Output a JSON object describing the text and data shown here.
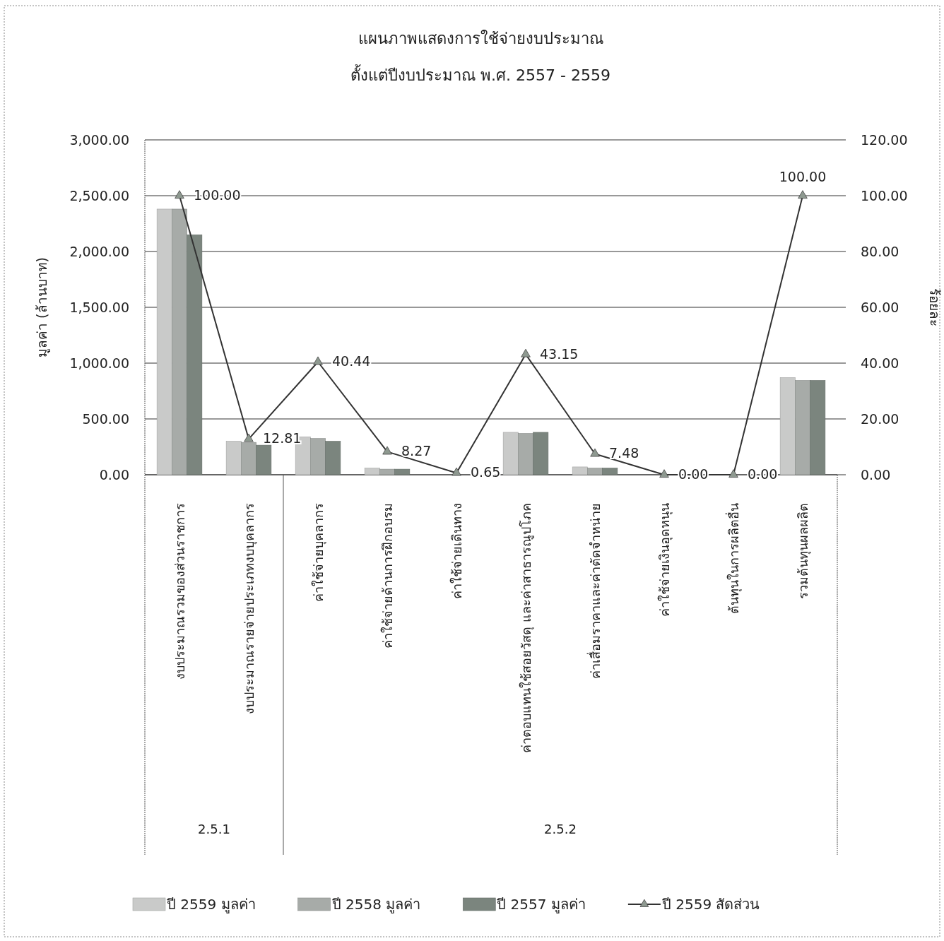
{
  "chart_data": {
    "type": "bar",
    "title": "แผนภาพแสดงการใช้จ่ายงบประมาณ",
    "subtitle": "ตั้งแต่ปีงบประมาณ พ.ศ. 2557 - 2559",
    "ylabel": "มูลค่า (ล้านบาท)",
    "y2label": "ร้อยละ",
    "categories": [
      "งบประมาณรวมของส่วนราชการ",
      "งบประมาณรายจ่ายประเภทงบบุคลากร",
      "ค่าใช้จ่ายบุคลากร",
      "ค่าใช้จ่ายด้านการฝึกอบรม",
      "ค่าใช้จ่ายเดินทาง",
      "ค่าตอบแทนใช้สอยวัสดุ และค่าสาธารณูปโภค",
      "ค่าเสื่อมราคาและค่าตัดจำหน่าย",
      "ค่าใช้จ่ายเงินอุดหนุน",
      "ต้นทุนในการผลิตอื่น",
      "รวมต้นทุนผลผลิต"
    ],
    "series": [
      {
        "name": "ปี 2559 มูลค่า",
        "color": "#c9cac9",
        "values": [
          2380,
          300,
          340,
          60,
          0,
          380,
          70,
          0,
          0,
          870
        ]
      },
      {
        "name": "ปี 2558 มูลค่า",
        "color": "#a7aba8",
        "values": [
          2380,
          290,
          325,
          50,
          0,
          370,
          60,
          0,
          0,
          845
        ]
      },
      {
        "name": "ปี 2557 มูลค่า",
        "color": "#7b857e",
        "values": [
          2150,
          265,
          300,
          50,
          0,
          380,
          60,
          0,
          0,
          845
        ]
      },
      {
        "name": "ปี 2559 สัดส่วน",
        "type": "line",
        "axis": "y2",
        "color": "#333333",
        "marker": "triangle",
        "values": [
          100,
          12.81,
          40.44,
          8.27,
          0.65,
          43.15,
          7.48,
          0,
          0,
          100
        ],
        "value_labels": [
          "100.00",
          "12.81",
          "40.44",
          "8.27",
          "0.65",
          "43.15",
          "7.48",
          "0.00",
          "0.00",
          "100.00"
        ]
      }
    ],
    "ylim": [
      0,
      3000
    ],
    "yticks": [
      {
        "value": 0,
        "label": "0.00"
      },
      {
        "value": 500,
        "label": "500.00"
      },
      {
        "value": 1000,
        "label": "1,000.00"
      },
      {
        "value": 1500,
        "label": "1,500.00"
      },
      {
        "value": 2000,
        "label": "2,000.00"
      },
      {
        "value": 2500,
        "label": "2,500.00"
      },
      {
        "value": 3000,
        "label": "3,000.00"
      }
    ],
    "y2lim": [
      0,
      120
    ],
    "y2ticks": [
      {
        "value": 0,
        "label": "0.00"
      },
      {
        "value": 20,
        "label": "20.00"
      },
      {
        "value": 40,
        "label": "40.00"
      },
      {
        "value": 60,
        "label": "60.00"
      },
      {
        "value": 80,
        "label": "80.00"
      },
      {
        "value": 100,
        "label": "100.00"
      },
      {
        "value": 120,
        "label": "120.00"
      }
    ],
    "grid": "y",
    "legend": "bottom",
    "annotations": [
      "2.5.1",
      "2.5.2"
    ]
  }
}
